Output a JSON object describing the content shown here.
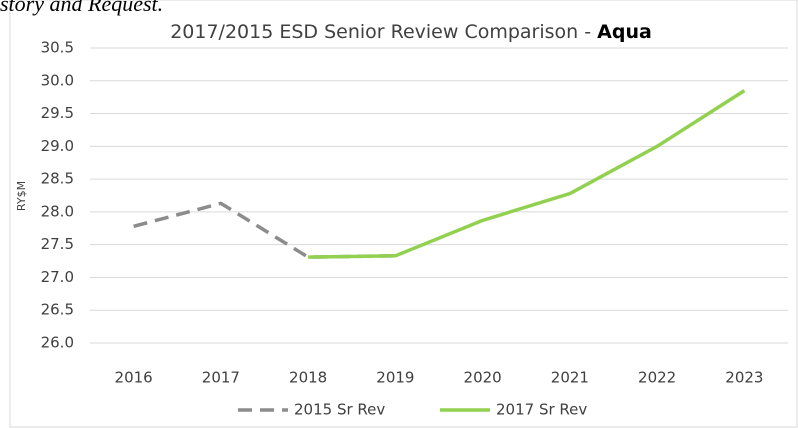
{
  "chart_data": {
    "type": "line",
    "annotation": "story and Request.",
    "title": "2017/2015 ESD Senior Review Comparison -",
    "title_emphasis": "Aqua",
    "ylabel": "RY$M",
    "categories": [
      "2016",
      "2017",
      "2018",
      "2019",
      "2020",
      "2021",
      "2022",
      "2023"
    ],
    "series": [
      {
        "name": "2015 Sr Rev",
        "color": "#8c8c8c",
        "dashed": true,
        "values": [
          27.78,
          28.13,
          27.31,
          27.33,
          null,
          null,
          null,
          null
        ]
      },
      {
        "name": "2017 Sr Rev",
        "color": "#92d050",
        "dashed": false,
        "values": [
          null,
          null,
          27.31,
          27.33,
          27.87,
          28.28,
          29.0,
          29.85
        ]
      }
    ],
    "ylim": [
      26,
      30.5
    ],
    "yticks": [
      {
        "value": 26,
        "label": "26.0"
      },
      26.5,
      {
        "value": 27,
        "label": "27.0"
      },
      27.5,
      {
        "value": 28,
        "label": "28.0"
      },
      28.5,
      {
        "value": 29,
        "label": "29.0"
      },
      29.5,
      {
        "value": 30,
        "label": "30.0"
      },
      30.5
    ],
    "grid": true,
    "legend": "bottom"
  }
}
